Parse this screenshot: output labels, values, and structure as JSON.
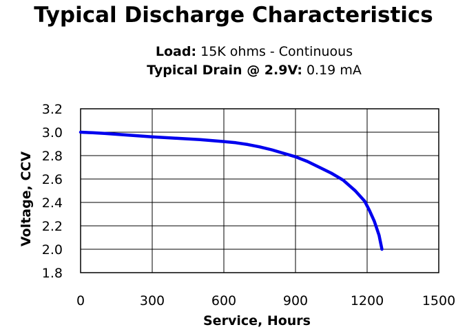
{
  "subtitle": {
    "load_label": "Load:",
    "load_value": "15K ohms - Continuous",
    "drain_label": "Typical Drain @ 2.9V:",
    "drain_value": "0.19 mA"
  },
  "chart_data": {
    "type": "line",
    "title": "Typical Discharge Characteristics",
    "xlabel": "Service, Hours",
    "ylabel": "Voltage, CCV",
    "xlim": [
      0,
      1500
    ],
    "ylim": [
      1.8,
      3.2
    ],
    "xticks": [
      "0",
      "300",
      "600",
      "900",
      "1200",
      "1500"
    ],
    "yticks": [
      "3.2",
      "3.0",
      "2.8",
      "2.6",
      "2.4",
      "2.2",
      "2.0",
      "1.8"
    ],
    "grid": true,
    "series": [
      {
        "color": "#0000ee",
        "x": [
          0,
          50,
          100,
          200,
          300,
          400,
          500,
          600,
          650,
          700,
          750,
          800,
          850,
          900,
          950,
          1000,
          1050,
          1100,
          1150,
          1190,
          1210,
          1230,
          1250,
          1262
        ],
        "y": [
          3.0,
          2.995,
          2.99,
          2.975,
          2.96,
          2.948,
          2.937,
          2.92,
          2.91,
          2.895,
          2.875,
          2.85,
          2.82,
          2.79,
          2.75,
          2.7,
          2.65,
          2.59,
          2.5,
          2.41,
          2.33,
          2.24,
          2.12,
          2.0
        ]
      }
    ]
  }
}
